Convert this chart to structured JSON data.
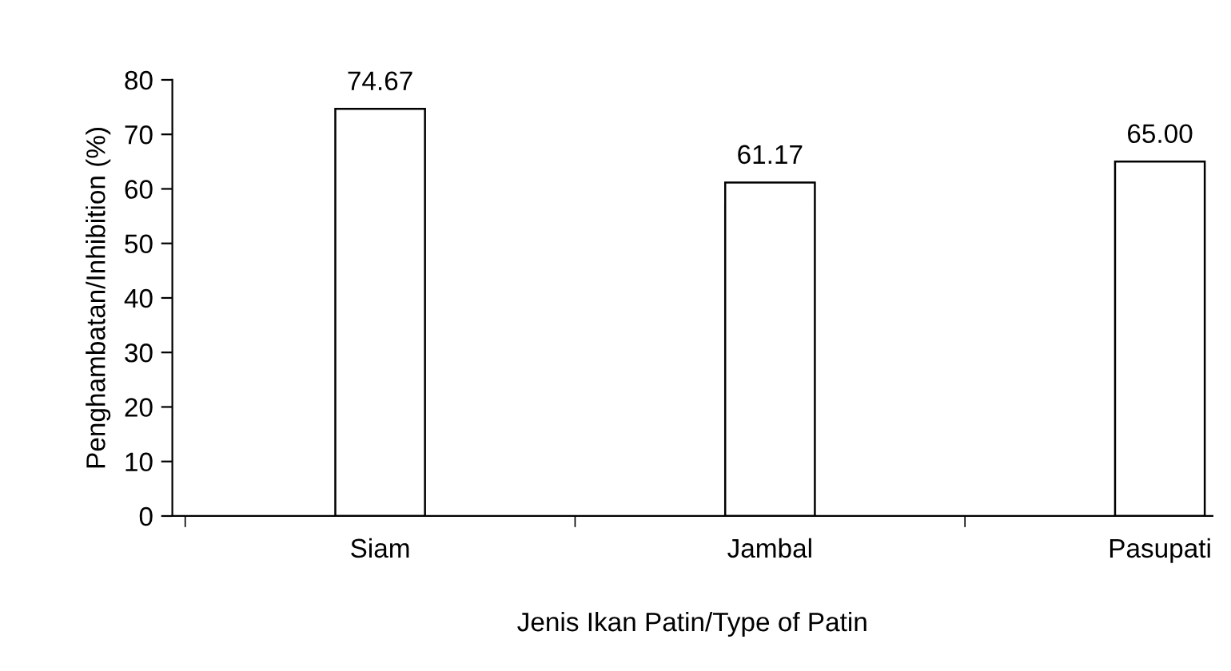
{
  "chart_data": {
    "type": "bar",
    "xlabel": "Jenis Ikan Patin/Type of Patin",
    "ylabel": "Penghambatan/Inhibition (%)",
    "categories": [
      "Siam",
      "Jambal",
      "Pasupati"
    ],
    "values": [
      74.67,
      61.17,
      65.0
    ],
    "value_labels": [
      "74.67",
      "61.17",
      "65.00"
    ],
    "color": "#ffffff",
    "ylim": [
      0,
      80
    ],
    "yticks": [
      0,
      10,
      20,
      30,
      40,
      50,
      60,
      70,
      80
    ],
    "grid": false,
    "legend": false
  }
}
